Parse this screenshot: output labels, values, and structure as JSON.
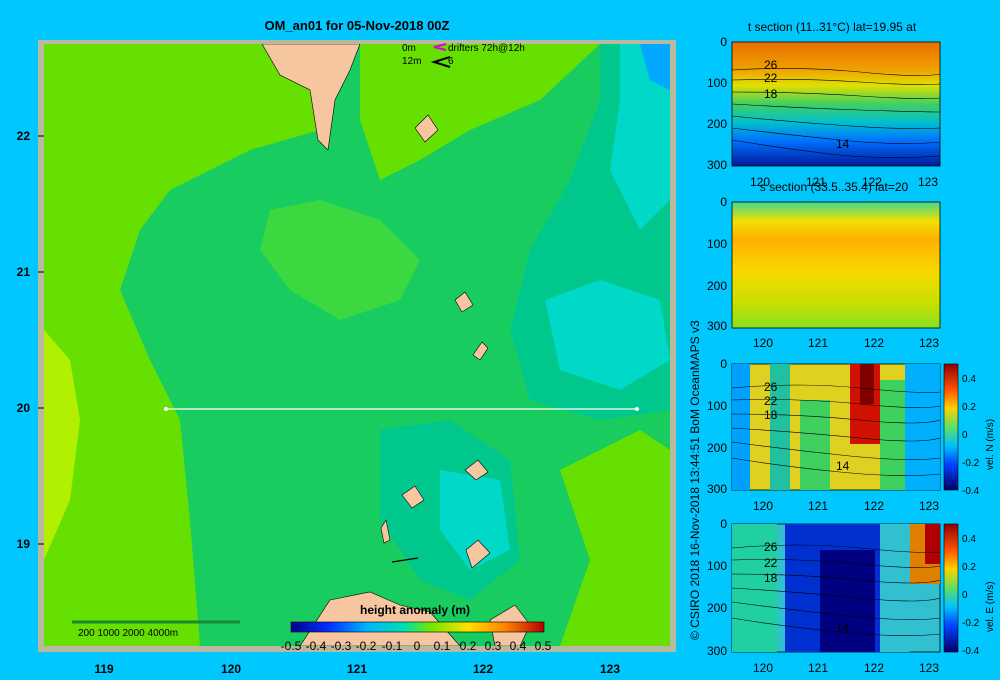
{
  "map": {
    "title": "OM_an01 for 05-Nov-2018 00Z",
    "x_ticks": [
      "119",
      "120",
      "121",
      "122",
      "123"
    ],
    "y_ticks": [
      "22",
      "21",
      "20",
      "19"
    ],
    "legend_0m": "0m",
    "legend_12m": "12m",
    "legend_drifters": "drifters 72h@12h",
    "legend_12m_label": "6",
    "scale_label": "200  1000  2000  4000m",
    "colorbar_title": "height anomaly (m)",
    "colorbar_ticks": [
      "-0.5",
      "-0.4",
      "-0.3",
      "-0.2",
      "-0.1",
      "0",
      "0.1",
      "0.2",
      "0.3",
      "0.4",
      "0.5"
    ],
    "section_line_lat": 20,
    "colors": {
      "background": "#00c8ff",
      "land": "#f5c6a0",
      "border": "#b9b9a0",
      "section": "#ffffff"
    }
  },
  "credit": "© CSIRO 2018   16-Nov-2018 13:44:51  BoM OceanMAPS v3",
  "panels": [
    {
      "title": "t section (11..31°C) lat=19.95 at",
      "y_ticks": [
        "0",
        "100",
        "200",
        "300"
      ],
      "x_ticks": [
        "120",
        "121",
        "122",
        "123"
      ],
      "contour_labels": [
        "26",
        "22",
        "18",
        "14"
      ],
      "cbar_label": "",
      "cbar_ticks": []
    },
    {
      "title": "s section (33.5..35.4) lat=20",
      "y_ticks": [
        "0",
        "100",
        "200",
        "300"
      ],
      "x_ticks": [
        "120",
        "121",
        "122",
        "123"
      ],
      "contour_labels": [],
      "cbar_label": "",
      "cbar_ticks": []
    },
    {
      "title": "",
      "y_ticks": [
        "0",
        "100",
        "200",
        "300"
      ],
      "x_ticks": [
        "120",
        "121",
        "122",
        "123"
      ],
      "contour_labels": [
        "26",
        "22",
        "18",
        "14"
      ],
      "cbar_label": "vel. N (m/s)",
      "cbar_ticks": [
        "0.4",
        "0.2",
        "0",
        "-0.2",
        "-0.4"
      ]
    },
    {
      "title": "",
      "y_ticks": [
        "0",
        "100",
        "200",
        "300"
      ],
      "x_ticks": [
        "120",
        "121",
        "122",
        "123"
      ],
      "contour_labels": [
        "26",
        "22",
        "18",
        "14"
      ],
      "cbar_label": "vel. E (m/s)",
      "cbar_ticks": [
        "0.4",
        "0.2",
        "0",
        "-0.2",
        "-0.4"
      ]
    }
  ],
  "chart_data": [
    {
      "type": "heatmap",
      "title": "OM_an01 for 05-Nov-2018 00Z",
      "variable": "height anomaly (m)",
      "x_range": [
        118.5,
        123.5
      ],
      "y_range": [
        18.3,
        22.7
      ],
      "color_range": [
        -0.5,
        0.5
      ],
      "grid": false,
      "section": {
        "lat": 20,
        "lon": [
          119.5,
          123.2
        ]
      }
    },
    {
      "type": "heatmap",
      "title": "t section (11..31°C) lat=19.95 at",
      "x_range": [
        119.5,
        123.2
      ],
      "y_range": [
        300,
        0
      ],
      "contour_levels": [
        26,
        22,
        18,
        14
      ]
    },
    {
      "type": "heatmap",
      "title": "s section (33.5..35.4) lat=20",
      "x_range": [
        119.5,
        123.2
      ],
      "y_range": [
        300,
        0
      ]
    },
    {
      "type": "heatmap",
      "title": "vel. N (m/s)",
      "x_range": [
        119.5,
        123.2
      ],
      "y_range": [
        300,
        0
      ],
      "color_range": [
        -0.4,
        0.4
      ]
    },
    {
      "type": "heatmap",
      "title": "vel. E (m/s)",
      "x_range": [
        119.5,
        123.2
      ],
      "y_range": [
        300,
        0
      ],
      "color_range": [
        -0.4,
        0.4
      ]
    }
  ]
}
